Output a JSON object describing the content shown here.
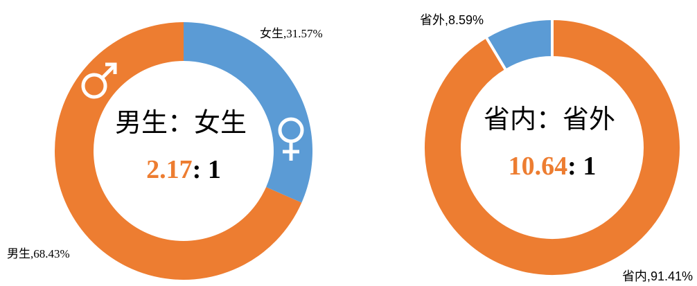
{
  "chart_data": [
    {
      "type": "donut",
      "categories": [
        "女生",
        "男生"
      ],
      "values": [
        31.57,
        68.43
      ],
      "value_labels": [
        "女生,31.57%",
        "男生,68.43%"
      ],
      "colors": [
        "#5b9bd5",
        "#ed7d31"
      ],
      "center_title": "男生：女生",
      "ratio": 2.17,
      "ratio_rest": ": 1"
    },
    {
      "type": "donut",
      "categories": [
        "省内",
        "省外"
      ],
      "values": [
        91.41,
        8.59
      ],
      "value_labels": [
        "省内,91.41%",
        "省外,8.59%"
      ],
      "colors": [
        "#ed7d31",
        "#5b9bd5"
      ],
      "center_title": "省内：省外",
      "ratio": 10.64,
      "ratio_rest": ": 1"
    }
  ]
}
